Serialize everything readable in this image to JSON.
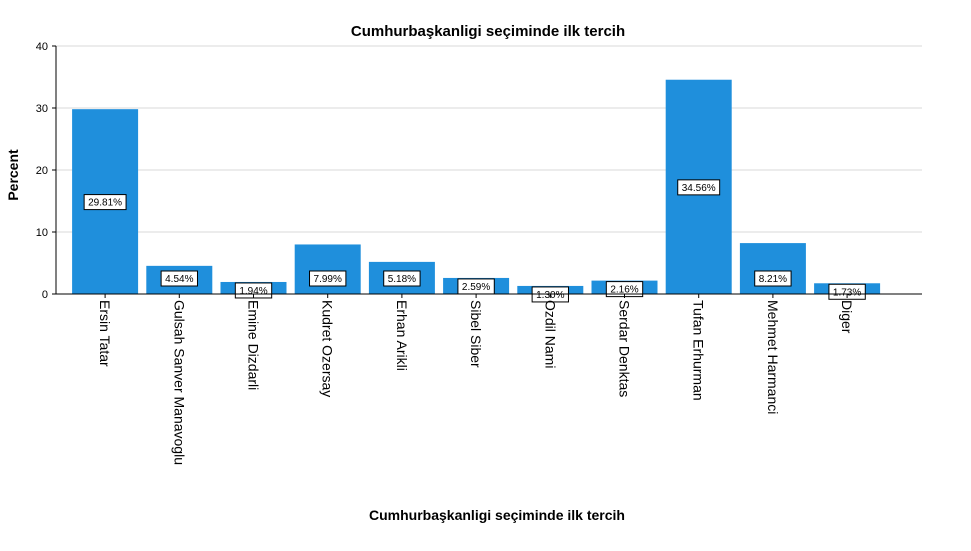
{
  "chart_data": {
    "type": "bar",
    "title": "Cumhurbaşkanligi seçiminde ilk tercih",
    "xlabel": "Cumhurbaşkanligi seçiminde ilk tercih",
    "ylabel": "Percent",
    "ylim": [
      0,
      40
    ],
    "yticks": [
      0,
      10,
      20,
      30,
      40
    ],
    "grid": true,
    "bar_color": "#1f8fdc",
    "categories": [
      "Ersin Tatar",
      "Gulsah Sanver Manavoglu",
      "Emine Dizdarli",
      "Kudret Ozersay",
      "Erhan Arikli",
      "Sibel Siber",
      "Ozdil Nami",
      "Serdar Denktas",
      "Tufan Erhurman",
      "Mehmet Harmanci",
      "Diger"
    ],
    "values": [
      29.81,
      4.54,
      1.94,
      7.99,
      5.18,
      2.59,
      1.3,
      2.16,
      34.56,
      8.21,
      1.73
    ],
    "data_labels": [
      "29.81%",
      "4.54%",
      "1.94%",
      "7.99%",
      "5.18%",
      "2.59%",
      "1.30%",
      "2.16%",
      "34.56%",
      "8.21%",
      "1.73%"
    ]
  }
}
